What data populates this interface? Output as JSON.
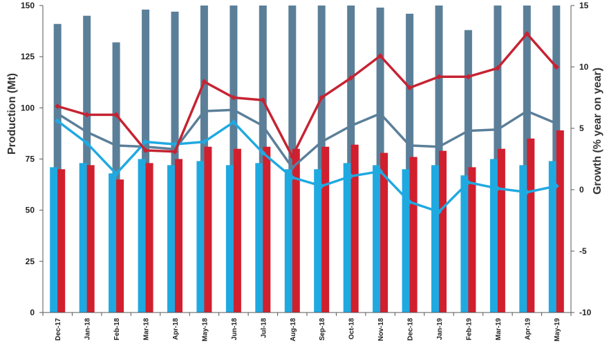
{
  "chart_data": {
    "type": "bar+line",
    "categories": [
      "Dec-17",
      "Jan-18",
      "Feb-18",
      "Mar-18",
      "Apr-18",
      "May-18",
      "Jun-18",
      "Jul-18",
      "Aug-18",
      "Sep-18",
      "Oct-18",
      "Nov-18",
      "Dec-18",
      "Jan-19",
      "Feb-19",
      "Mar-19",
      "Apr-19",
      "May-19"
    ],
    "xlabel": "",
    "ylabel": "Production (Mt)",
    "y2label": "Growth (% year on year)",
    "ylim": [
      0,
      150
    ],
    "y2lim": [
      -10,
      15
    ],
    "yticks": [
      0,
      25,
      50,
      75,
      100,
      125,
      150
    ],
    "y2ticks": [
      -10,
      -5,
      0,
      5,
      10,
      15
    ],
    "series": [
      {
        "kind": "bar",
        "axis": "left",
        "color": "#5b7f99",
        "values": [
          141,
          145,
          132,
          148,
          147,
          158,
          152,
          158,
          150,
          151,
          158,
          149,
          146,
          150,
          138,
          158,
          158,
          158
        ]
      },
      {
        "kind": "bar",
        "axis": "left",
        "color": "#1fa9e1",
        "values": [
          71,
          73,
          68,
          75,
          72,
          74,
          72,
          73,
          70,
          70,
          73,
          72,
          70,
          72,
          67,
          75,
          72,
          74
        ]
      },
      {
        "kind": "bar",
        "axis": "left",
        "color": "#d11f2e",
        "values": [
          70,
          72,
          65,
          73,
          75,
          81,
          80,
          81,
          80,
          81,
          82,
          78,
          76,
          79,
          71,
          80,
          85,
          89
        ]
      },
      {
        "kind": "line",
        "axis": "right",
        "color": "#5b7f99",
        "values": [
          6.2,
          4.7,
          3.6,
          3.5,
          3.3,
          6.4,
          6.5,
          5.2,
          1.8,
          3.9,
          5.2,
          6.2,
          3.6,
          3.5,
          4.8,
          4.9,
          6.4,
          5.4
        ]
      },
      {
        "kind": "line",
        "axis": "right",
        "color": "#1fa9e1",
        "values": [
          5.6,
          3.8,
          1.3,
          3.9,
          3.7,
          3.9,
          5.5,
          3.0,
          1.0,
          0.3,
          1.1,
          1.5,
          -1.0,
          -1.8,
          0.6,
          0.1,
          -0.2,
          0.3
        ]
      },
      {
        "kind": "line",
        "axis": "right",
        "color": "#c62332",
        "values": [
          6.8,
          6.1,
          6.1,
          3.2,
          3.1,
          8.8,
          7.5,
          7.3,
          2.7,
          7.5,
          9.1,
          10.9,
          8.3,
          9.2,
          9.2,
          9.9,
          12.7,
          10.0
        ]
      }
    ]
  }
}
